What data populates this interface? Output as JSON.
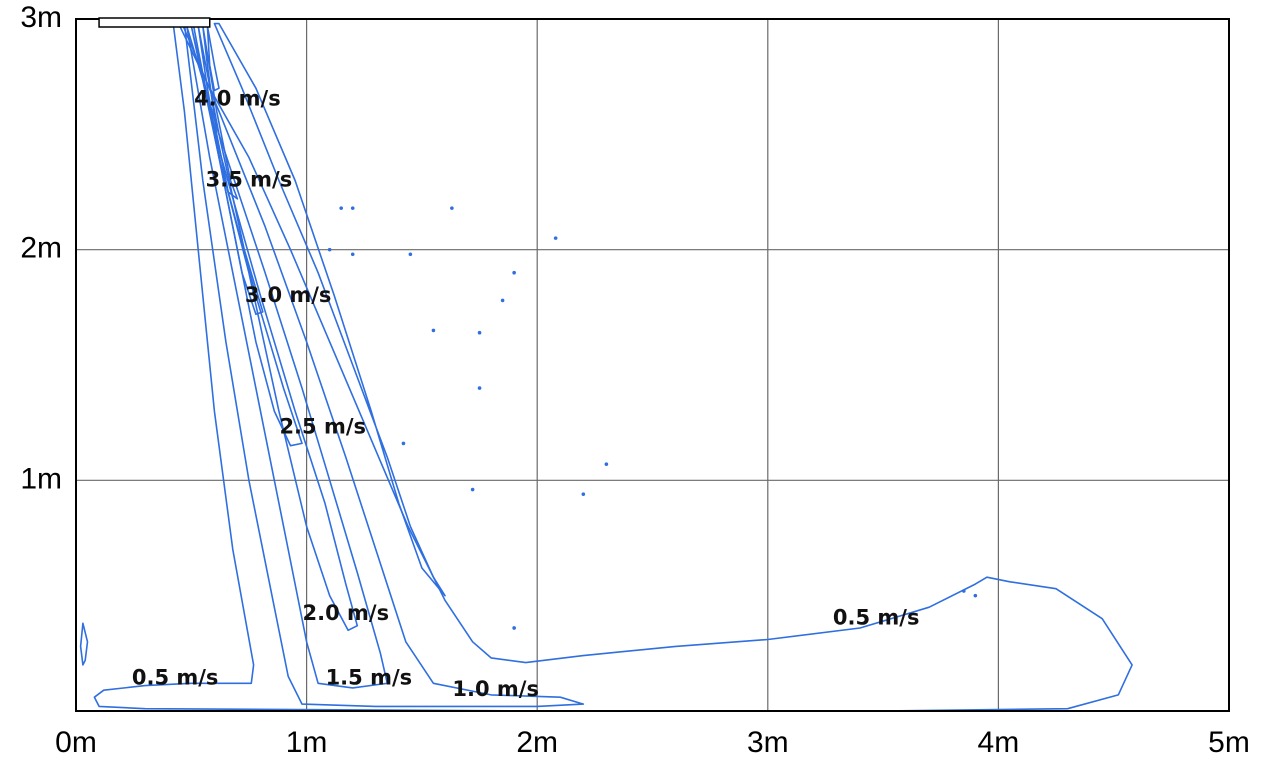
{
  "chart_data": {
    "type": "contour",
    "title": "",
    "xlabel": "",
    "ylabel": "",
    "xlim": [
      0,
      5
    ],
    "ylim": [
      0,
      3
    ],
    "grid": true,
    "x_ticks": [
      {
        "value": 0,
        "label": "0m"
      },
      {
        "value": 1,
        "label": "1m"
      },
      {
        "value": 2,
        "label": "2m"
      },
      {
        "value": 3,
        "label": "3m"
      },
      {
        "value": 4,
        "label": "4m"
      },
      {
        "value": 5,
        "label": "5m"
      }
    ],
    "y_ticks": [
      {
        "value": 1,
        "label": "1m"
      },
      {
        "value": 2,
        "label": "2m"
      },
      {
        "value": 3,
        "label": "3m"
      }
    ],
    "contours": [
      {
        "name": "outer-0.5",
        "points": [
          [
            0.44,
            2.99
          ],
          [
            0.58,
            2.7
          ],
          [
            0.75,
            2.4
          ],
          [
            0.93,
            2.0
          ],
          [
            1.1,
            1.6
          ],
          [
            1.27,
            1.2
          ],
          [
            1.44,
            0.8
          ],
          [
            1.6,
            0.48
          ],
          [
            1.72,
            0.3
          ],
          [
            1.8,
            0.23
          ],
          [
            1.95,
            0.21
          ],
          [
            2.2,
            0.24
          ],
          [
            2.6,
            0.28
          ],
          [
            3.0,
            0.31
          ],
          [
            3.4,
            0.36
          ],
          [
            3.7,
            0.45
          ],
          [
            3.9,
            0.55
          ],
          [
            3.95,
            0.58
          ],
          [
            4.05,
            0.56
          ],
          [
            4.25,
            0.53
          ],
          [
            4.45,
            0.4
          ],
          [
            4.58,
            0.2
          ],
          [
            4.52,
            0.07
          ],
          [
            4.3,
            0.01
          ],
          [
            3.5,
            0.0
          ],
          [
            2.0,
            0.0
          ],
          [
            0.3,
            0.01
          ],
          [
            0.1,
            0.02
          ],
          [
            0.08,
            0.06
          ],
          [
            0.12,
            0.09
          ],
          [
            0.3,
            0.11
          ],
          [
            0.5,
            0.12
          ],
          [
            0.76,
            0.12
          ],
          [
            0.77,
            0.2
          ],
          [
            0.68,
            0.7
          ],
          [
            0.6,
            1.3
          ],
          [
            0.53,
            2.0
          ],
          [
            0.47,
            2.6
          ],
          [
            0.42,
            2.99
          ]
        ]
      },
      {
        "name": "contour-1.0",
        "points": [
          [
            0.46,
            2.98
          ],
          [
            0.62,
            2.6
          ],
          [
            0.82,
            2.1
          ],
          [
            1.0,
            1.6
          ],
          [
            1.17,
            1.1
          ],
          [
            1.3,
            0.7
          ],
          [
            1.43,
            0.3
          ],
          [
            1.55,
            0.12
          ],
          [
            1.8,
            0.07
          ],
          [
            2.1,
            0.06
          ],
          [
            2.2,
            0.03
          ],
          [
            2.0,
            0.02
          ],
          [
            1.3,
            0.02
          ],
          [
            0.98,
            0.03
          ],
          [
            0.92,
            0.15
          ],
          [
            0.85,
            0.5
          ],
          [
            0.75,
            1.0
          ],
          [
            0.65,
            1.6
          ],
          [
            0.55,
            2.3
          ],
          [
            0.47,
            2.98
          ]
        ]
      },
      {
        "name": "contour-1.5",
        "points": [
          [
            0.48,
            2.97
          ],
          [
            0.62,
            2.5
          ],
          [
            0.82,
            1.9
          ],
          [
            0.98,
            1.4
          ],
          [
            1.1,
            1.0
          ],
          [
            1.22,
            0.6
          ],
          [
            1.32,
            0.25
          ],
          [
            1.35,
            0.12
          ],
          [
            1.2,
            0.1
          ],
          [
            1.05,
            0.12
          ],
          [
            1.0,
            0.3
          ],
          [
            0.92,
            0.7
          ],
          [
            0.82,
            1.2
          ],
          [
            0.7,
            1.8
          ],
          [
            0.58,
            2.4
          ],
          [
            0.48,
            2.97
          ]
        ]
      },
      {
        "name": "contour-2.0",
        "points": [
          [
            0.5,
            2.97
          ],
          [
            0.63,
            2.4
          ],
          [
            0.8,
            1.8
          ],
          [
            0.95,
            1.3
          ],
          [
            1.08,
            0.9
          ],
          [
            1.17,
            0.55
          ],
          [
            1.22,
            0.37
          ],
          [
            1.18,
            0.35
          ],
          [
            1.1,
            0.5
          ],
          [
            1.0,
            0.8
          ],
          [
            0.88,
            1.3
          ],
          [
            0.75,
            1.9
          ],
          [
            0.62,
            2.4
          ],
          [
            0.5,
            2.97
          ]
        ]
      },
      {
        "name": "contour-2.5",
        "points": [
          [
            0.51,
            2.97
          ],
          [
            0.62,
            2.4
          ],
          [
            0.78,
            1.8
          ],
          [
            0.9,
            1.4
          ],
          [
            0.98,
            1.16
          ],
          [
            0.93,
            1.15
          ],
          [
            0.86,
            1.3
          ],
          [
            0.78,
            1.6
          ],
          [
            0.68,
            2.1
          ],
          [
            0.58,
            2.6
          ],
          [
            0.51,
            2.97
          ]
        ]
      },
      {
        "name": "contour-3.0",
        "points": [
          [
            0.53,
            2.97
          ],
          [
            0.62,
            2.5
          ],
          [
            0.73,
            2.0
          ],
          [
            0.81,
            1.73
          ],
          [
            0.78,
            1.72
          ],
          [
            0.72,
            1.9
          ],
          [
            0.64,
            2.3
          ],
          [
            0.57,
            2.7
          ],
          [
            0.53,
            2.97
          ]
        ]
      },
      {
        "name": "contour-3.5",
        "points": [
          [
            0.55,
            2.97
          ],
          [
            0.61,
            2.6
          ],
          [
            0.67,
            2.3
          ],
          [
            0.7,
            2.22
          ],
          [
            0.66,
            2.25
          ],
          [
            0.61,
            2.5
          ],
          [
            0.57,
            2.8
          ],
          [
            0.55,
            2.97
          ]
        ]
      },
      {
        "name": "contour-4.0",
        "points": [
          [
            0.57,
            2.97
          ],
          [
            0.6,
            2.8
          ],
          [
            0.62,
            2.7
          ],
          [
            0.6,
            2.69
          ],
          [
            0.58,
            2.8
          ],
          [
            0.57,
            2.97
          ]
        ]
      },
      {
        "name": "outer-inner",
        "points": [
          [
            0.6,
            2.98
          ],
          [
            0.72,
            2.7
          ],
          [
            0.88,
            2.3
          ],
          [
            1.05,
            1.9
          ],
          [
            1.2,
            1.5
          ],
          [
            1.35,
            1.1
          ],
          [
            1.45,
            0.8
          ],
          [
            1.55,
            0.58
          ],
          [
            1.6,
            0.5
          ],
          [
            1.5,
            0.62
          ],
          [
            1.4,
            0.9
          ],
          [
            1.28,
            1.3
          ],
          [
            1.12,
            1.8
          ],
          [
            0.95,
            2.3
          ],
          [
            0.78,
            2.7
          ],
          [
            0.62,
            2.98
          ]
        ]
      },
      {
        "name": "left-wall-blob",
        "points": [
          [
            0.03,
            0.38
          ],
          [
            0.05,
            0.3
          ],
          [
            0.04,
            0.22
          ],
          [
            0.03,
            0.2
          ],
          [
            0.02,
            0.28
          ],
          [
            0.03,
            0.38
          ]
        ]
      }
    ],
    "contour_labels": [
      {
        "text": "4.0 m/s",
        "x": 0.7,
        "y": 2.65
      },
      {
        "text": "3.5 m/s",
        "x": 0.75,
        "y": 2.3
      },
      {
        "text": "3.0 m/s",
        "x": 0.92,
        "y": 1.8
      },
      {
        "text": "2.5 m/s",
        "x": 1.07,
        "y": 1.23
      },
      {
        "text": "2.0 m/s",
        "x": 1.17,
        "y": 0.42
      },
      {
        "text": "1.5 m/s",
        "x": 1.27,
        "y": 0.14
      },
      {
        "text": "1.0 m/s",
        "x": 1.82,
        "y": 0.09
      },
      {
        "text": "0.5 m/s",
        "x": 0.43,
        "y": 0.14
      },
      {
        "text": "0.5 m/s",
        "x": 3.47,
        "y": 0.4
      }
    ],
    "specks": [
      [
        1.15,
        2.18
      ],
      [
        1.2,
        2.18
      ],
      [
        1.63,
        2.18
      ],
      [
        2.08,
        2.05
      ],
      [
        1.1,
        2.0
      ],
      [
        1.2,
        1.98
      ],
      [
        1.45,
        1.98
      ],
      [
        1.9,
        1.9
      ],
      [
        1.85,
        1.78
      ],
      [
        1.55,
        1.65
      ],
      [
        1.75,
        1.64
      ],
      [
        1.75,
        1.4
      ],
      [
        1.42,
        1.16
      ],
      [
        2.3,
        1.07
      ],
      [
        1.72,
        0.96
      ],
      [
        2.2,
        0.94
      ],
      [
        1.9,
        0.36
      ],
      [
        3.9,
        0.5
      ],
      [
        3.85,
        0.52
      ]
    ],
    "diffuser": {
      "x_from": 0.1,
      "x_to": 0.58,
      "y": 3.0
    }
  }
}
